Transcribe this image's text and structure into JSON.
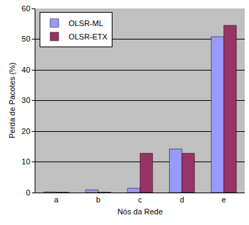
{
  "chart_data": {
    "type": "bar",
    "x_label": "Nós da Rede",
    "y_label": "Perda de Pacotes (%)",
    "categories": [
      "a",
      "b",
      "c",
      "d",
      "e"
    ],
    "series": [
      {
        "name": "OLSR-ML",
        "color": "#9999ff",
        "values": [
          0.2,
          0.9,
          1.4,
          14.2,
          50.8
        ]
      },
      {
        "name": "OLSR-ETX",
        "color": "#993366",
        "values": [
          0.1,
          0.1,
          12.8,
          12.8,
          54.5
        ]
      }
    ],
    "ylim": [
      0,
      60
    ],
    "yticks": [
      0,
      10,
      20,
      30,
      40,
      50,
      60
    ],
    "grid": true,
    "legend": "top-left"
  }
}
